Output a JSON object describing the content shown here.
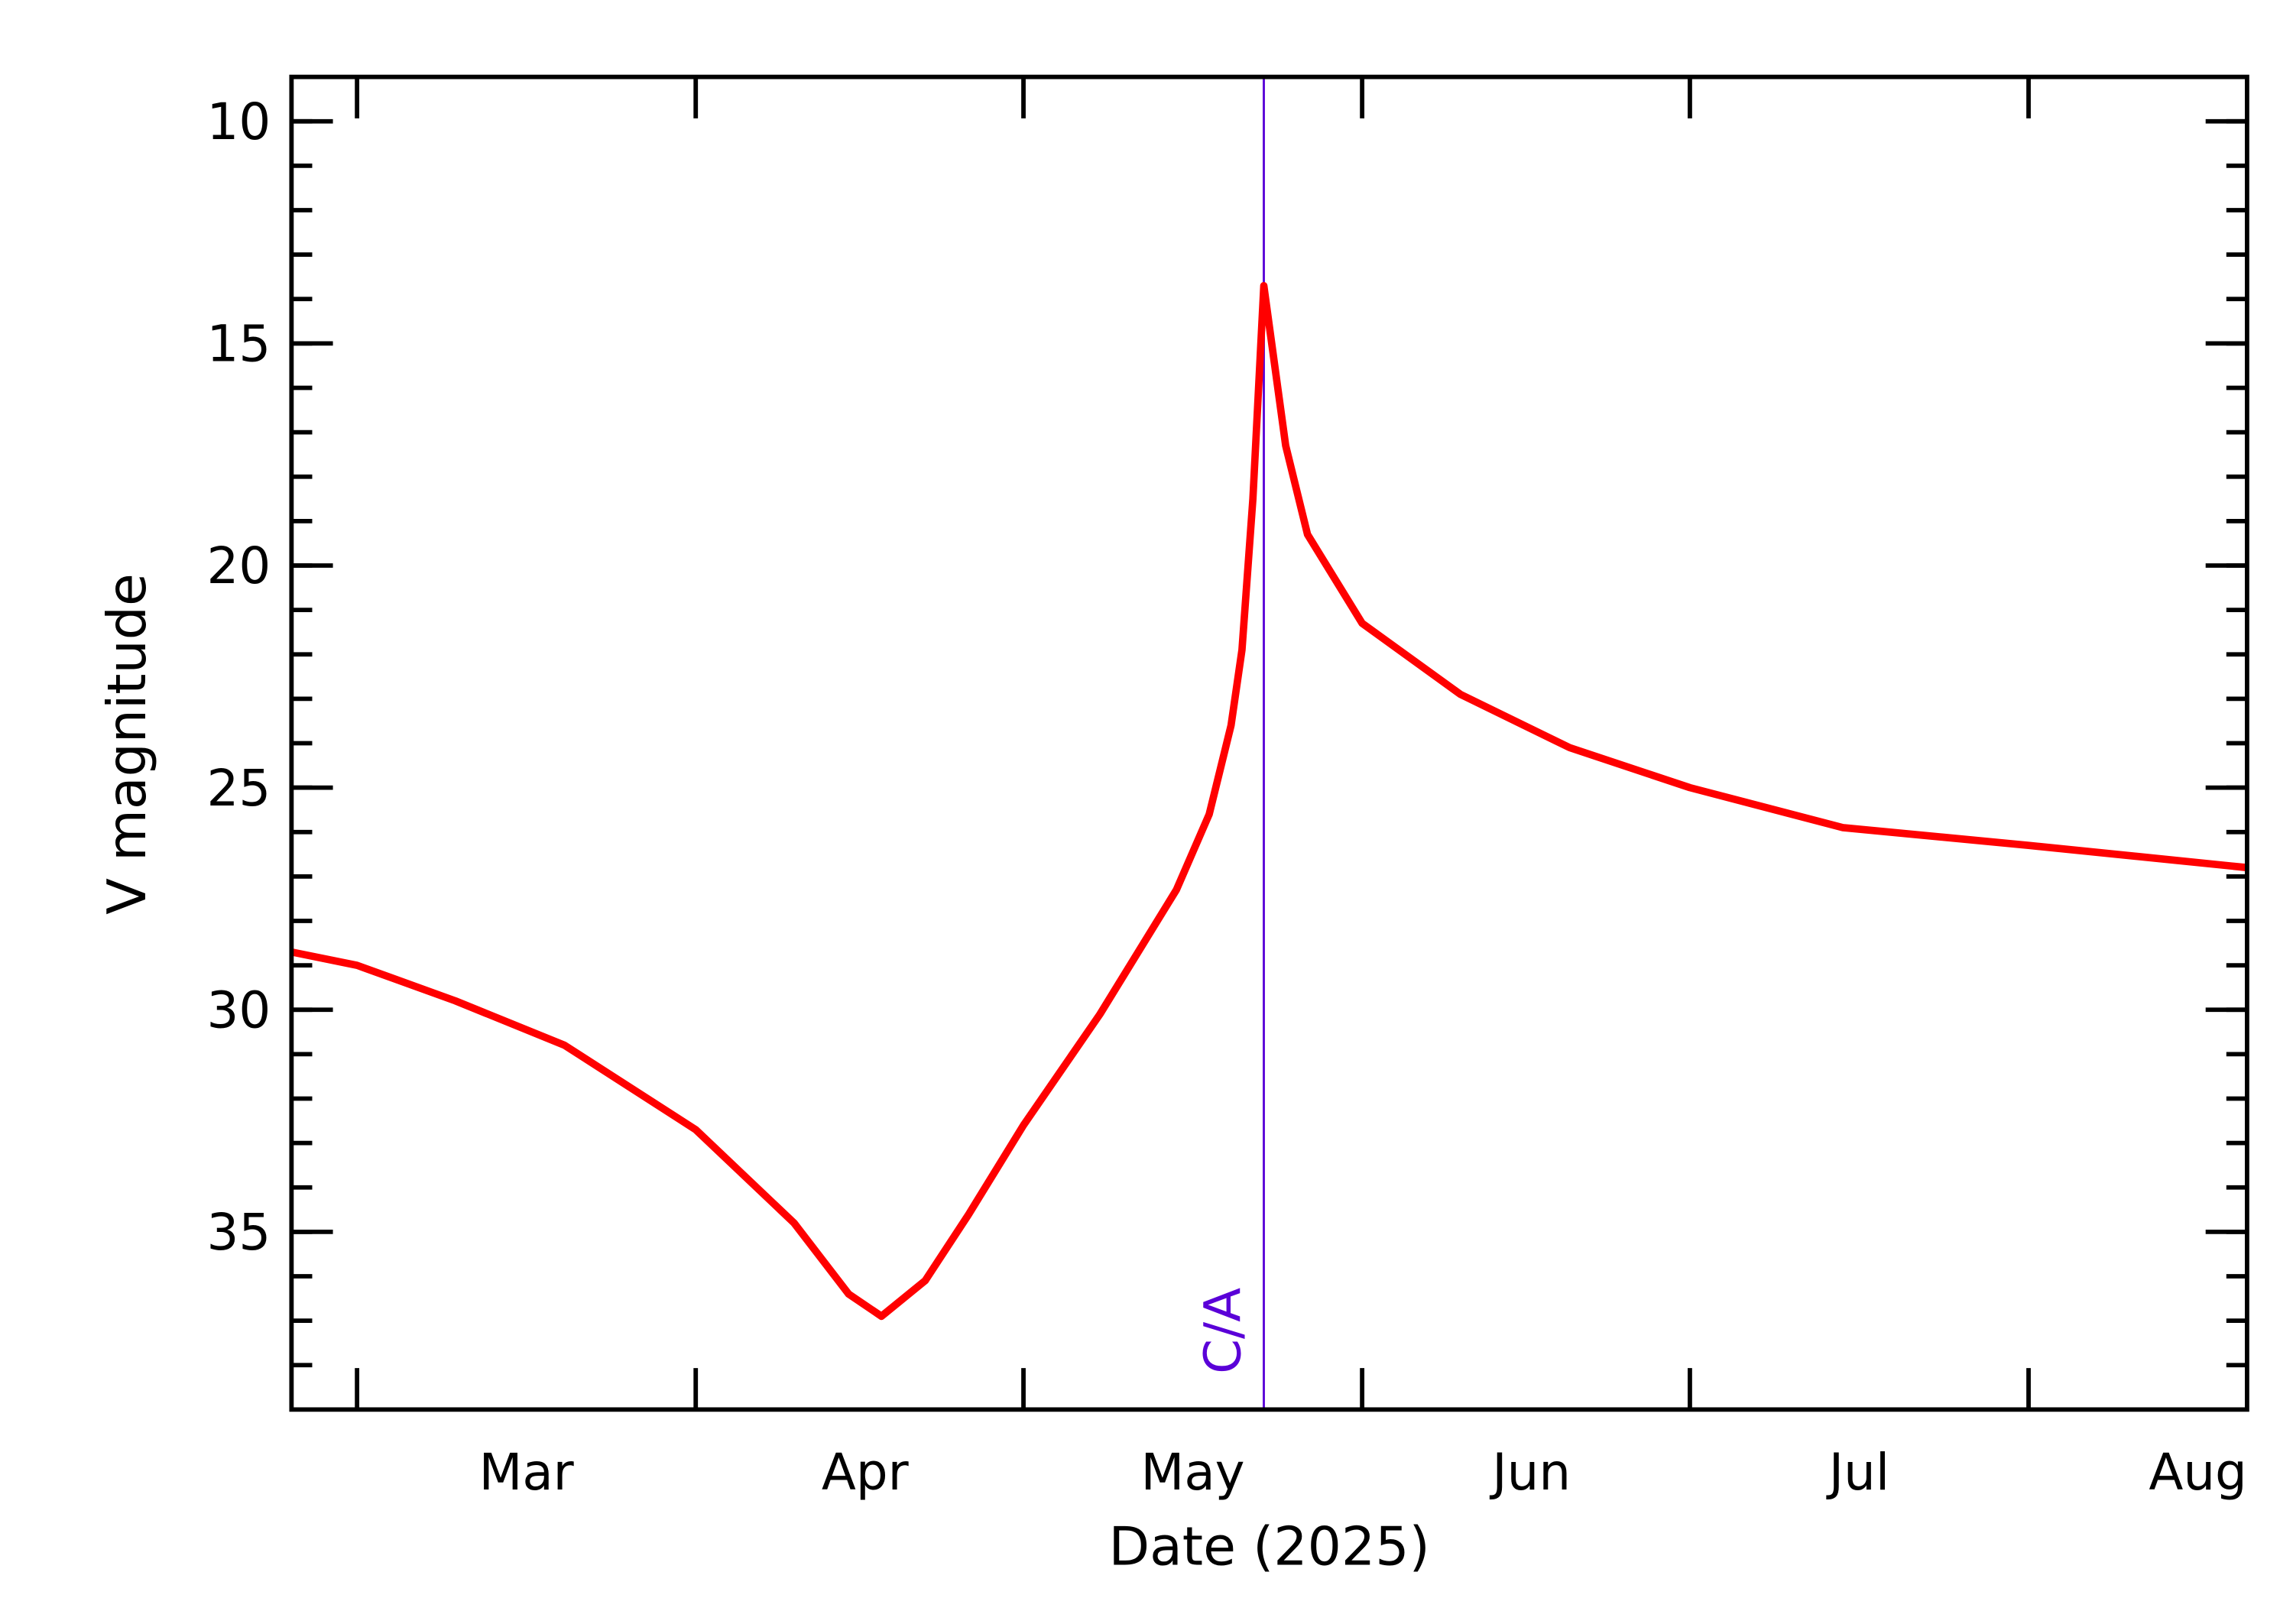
{
  "chart_data": {
    "type": "line",
    "x_label": "Date (2025)",
    "y_label": "V magnitude",
    "xlim": [
      "2025-02-23",
      "2025-08-21"
    ],
    "xticks": [
      {
        "value": "2025-03-01",
        "label": "Mar"
      },
      {
        "value": "2025-04-01",
        "label": "Apr"
      },
      {
        "value": "2025-05-01",
        "label": "May"
      },
      {
        "value": "2025-06-01",
        "label": "Jun"
      },
      {
        "value": "2025-07-01",
        "label": "Jul"
      },
      {
        "value": "2025-08-01",
        "label": "Aug"
      }
    ],
    "ylim": [
      9,
      39
    ],
    "y_inverted": true,
    "yticks": [
      10,
      15,
      20,
      25,
      30,
      35
    ],
    "x": [
      "2025-02-23",
      "2025-03-01",
      "2025-03-10",
      "2025-03-20",
      "2025-04-01",
      "2025-04-10",
      "2025-04-15",
      "2025-04-18",
      "2025-04-22",
      "2025-04-26",
      "2025-05-01",
      "2025-05-08",
      "2025-05-15",
      "2025-05-18",
      "2025-05-20",
      "2025-05-21",
      "2025-05-22",
      "2025-05-23",
      "2025-05-24",
      "2025-05-25",
      "2025-05-27",
      "2025-06-01",
      "2025-06-10",
      "2025-06-20",
      "2025-07-01",
      "2025-07-15",
      "2025-08-01",
      "2025-08-21"
    ],
    "series": [
      {
        "name": "V magnitude",
        "color": "#ff0000",
        "values": [
          28.7,
          29.0,
          29.8,
          30.8,
          32.7,
          34.8,
          36.4,
          36.9,
          36.1,
          34.6,
          32.6,
          30.1,
          27.3,
          25.6,
          23.6,
          21.9,
          18.5,
          13.7,
          15.5,
          17.3,
          19.3,
          21.3,
          22.9,
          24.1,
          25.0,
          25.9,
          26.3,
          26.8
        ]
      }
    ],
    "annotations": [
      {
        "text": "C/A",
        "x": "2025-05-23",
        "color": "#5a00d8"
      }
    ]
  }
}
